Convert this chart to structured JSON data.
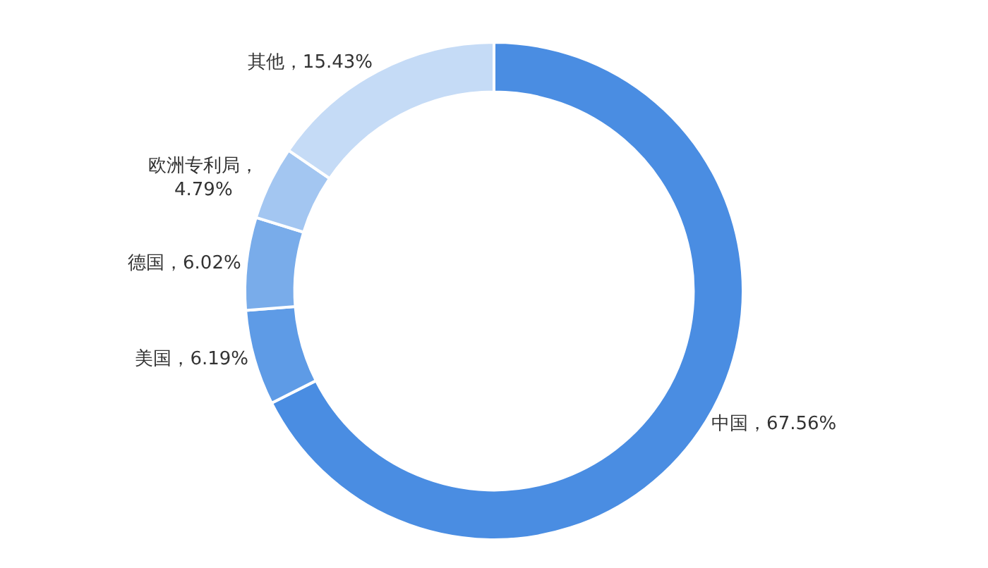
{
  "chart_data": {
    "type": "donut",
    "categories": [
      "中国",
      "美国",
      "德国",
      "欧洲专利局",
      "其他"
    ],
    "values": [
      67.56,
      6.19,
      6.02,
      4.79,
      15.43
    ],
    "colors": [
      "#4a8de2",
      "#5e9be6",
      "#79acea",
      "#a3c6f1",
      "#c5dbf6"
    ],
    "value_labels": [
      "，67.56%",
      "，6.19%",
      "，6.02%",
      "，\n4.79%",
      "，15.43%"
    ],
    "legend": false
  }
}
